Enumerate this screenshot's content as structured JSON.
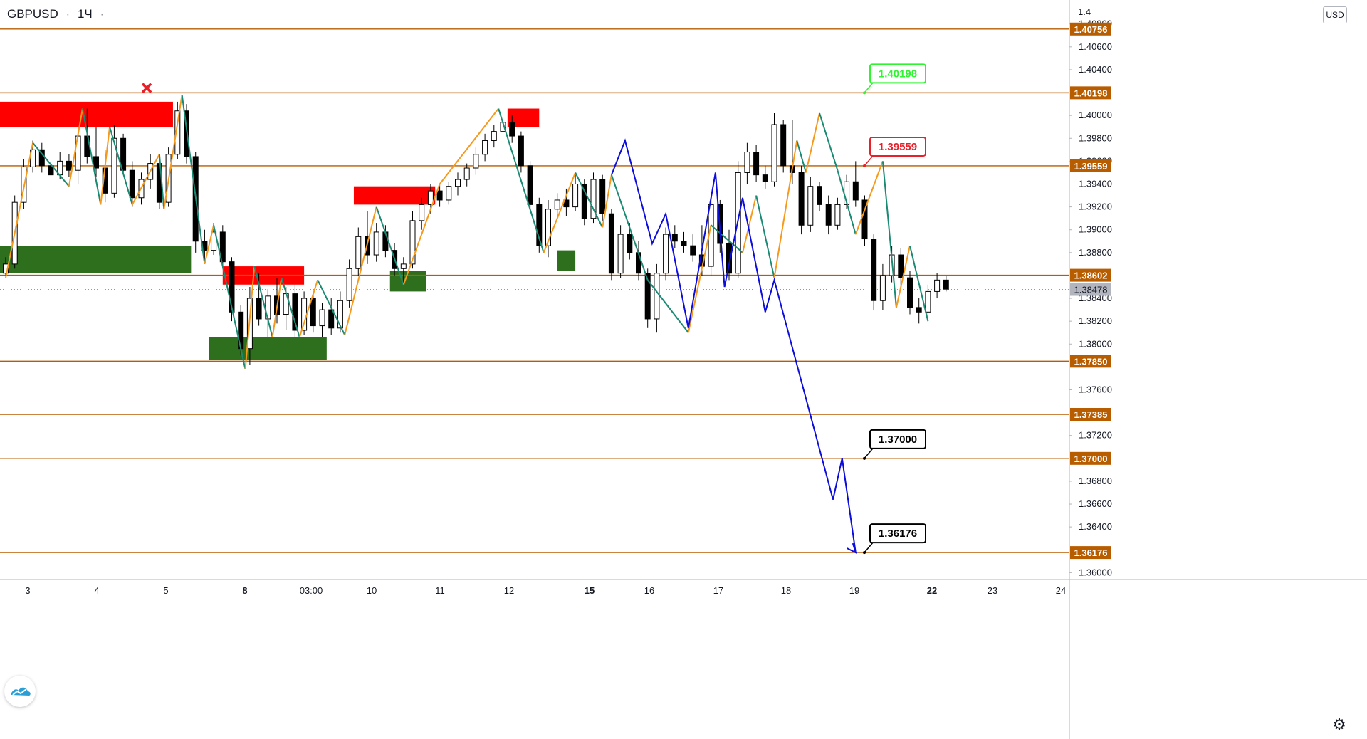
{
  "header": {
    "symbol": "GBPUSD",
    "interval": "1Ч",
    "dot": "·",
    "currency": "USD"
  },
  "colors": {
    "candle_up": "#ffffff",
    "candle_down": "#000000",
    "level_line": "#b85c00",
    "level_label_bg": "#b85c00",
    "current_price_bg": "#b2b5be",
    "zigzag_up": "#f59a1d",
    "zigzag_down": "#1b8a73",
    "forecast": "#0d0ddb",
    "supply_zone": "#ff0000",
    "demand_zone": "#2e6f1d",
    "tp_label": "#2ef52e",
    "sl_label": "#e8202a",
    "target_label": "#000000"
  },
  "chart_data": {
    "type": "candlestick",
    "title": "",
    "symbol": "GBPUSD",
    "timeframe": "1Ч",
    "ylim": [
      1.3594,
      1.4101
    ],
    "x_ticks": [
      {
        "label": "3",
        "bold": false
      },
      {
        "label": "4",
        "bold": false
      },
      {
        "label": "5",
        "bold": false
      },
      {
        "label": "8",
        "bold": true
      },
      {
        "label": "03:00",
        "bold": false
      },
      {
        "label": "10",
        "bold": false
      },
      {
        "label": "11",
        "bold": false
      },
      {
        "label": "12",
        "bold": false
      },
      {
        "label": "15",
        "bold": true
      },
      {
        "label": "16",
        "bold": false
      },
      {
        "label": "17",
        "bold": false
      },
      {
        "label": "18",
        "bold": false
      },
      {
        "label": "19",
        "bold": false
      },
      {
        "label": "22",
        "bold": true
      },
      {
        "label": "23",
        "bold": false
      },
      {
        "label": "24",
        "bold": false
      }
    ],
    "y_ticks": [
      "1.40800",
      "1.40600",
      "1.40400",
      "1.40000",
      "1.39800",
      "1.39600",
      "1.39400",
      "1.39200",
      "1.39000",
      "1.38800",
      "1.38400",
      "1.38200",
      "1.38000",
      "1.37600",
      "1.37200",
      "1.36800",
      "1.36600",
      "1.36400",
      "1.36000"
    ],
    "top_tick_partial": "1.4",
    "levels": [
      1.40756,
      1.40198,
      1.39559,
      1.38602,
      1.3785,
      1.37385,
      1.37,
      1.36176
    ],
    "level_labels": [
      "1.40756",
      "1.40198",
      "1.39559",
      "1.38602",
      "1.37850",
      "1.37385",
      "1.37000",
      "1.36176"
    ],
    "current_price": 1.38478,
    "current_price_label": "1.38478",
    "callouts": [
      {
        "text": "1.40198",
        "price": 1.40198,
        "role": "take-profit"
      },
      {
        "text": "1.39559",
        "price": 1.39559,
        "role": "stop"
      },
      {
        "text": "1.37000",
        "price": 1.37,
        "role": "target"
      },
      {
        "text": "1.36176",
        "price": 1.36176,
        "role": "target"
      }
    ],
    "cancel_marker": {
      "x": 15.6,
      "price": 1.4024
    },
    "candles": [
      {
        "i": 0,
        "o": 1.3862,
        "h": 1.3876,
        "l": 1.3858,
        "c": 1.387
      },
      {
        "i": 1,
        "o": 1.387,
        "h": 1.393,
        "l": 1.3866,
        "c": 1.3924
      },
      {
        "i": 2,
        "o": 1.3924,
        "h": 1.3962,
        "l": 1.3918,
        "c": 1.3955
      },
      {
        "i": 3,
        "o": 1.3955,
        "h": 1.3978,
        "l": 1.395,
        "c": 1.397
      },
      {
        "i": 4,
        "o": 1.397,
        "h": 1.3976,
        "l": 1.395,
        "c": 1.3956
      },
      {
        "i": 5,
        "o": 1.3956,
        "h": 1.3964,
        "l": 1.3942,
        "c": 1.3948
      },
      {
        "i": 6,
        "o": 1.3948,
        "h": 1.3968,
        "l": 1.3944,
        "c": 1.396
      },
      {
        "i": 7,
        "o": 1.396,
        "h": 1.3966,
        "l": 1.3946,
        "c": 1.3952
      },
      {
        "i": 8,
        "o": 1.3952,
        "h": 1.399,
        "l": 1.394,
        "c": 1.3982
      },
      {
        "i": 9,
        "o": 1.3982,
        "h": 1.4006,
        "l": 1.3958,
        "c": 1.3964
      },
      {
        "i": 10,
        "o": 1.3964,
        "h": 1.399,
        "l": 1.3946,
        "c": 1.3954
      },
      {
        "i": 11,
        "o": 1.3954,
        "h": 1.397,
        "l": 1.3924,
        "c": 1.3932
      },
      {
        "i": 12,
        "o": 1.3932,
        "h": 1.3992,
        "l": 1.3928,
        "c": 1.398
      },
      {
        "i": 13,
        "o": 1.398,
        "h": 1.3984,
        "l": 1.3948,
        "c": 1.3952
      },
      {
        "i": 14,
        "o": 1.3952,
        "h": 1.396,
        "l": 1.392,
        "c": 1.3928
      },
      {
        "i": 15,
        "o": 1.3928,
        "h": 1.395,
        "l": 1.3922,
        "c": 1.3944
      },
      {
        "i": 16,
        "o": 1.3944,
        "h": 1.3966,
        "l": 1.3936,
        "c": 1.3958
      },
      {
        "i": 17,
        "o": 1.3958,
        "h": 1.3962,
        "l": 1.3918,
        "c": 1.3924
      },
      {
        "i": 18,
        "o": 1.3924,
        "h": 1.3972,
        "l": 1.392,
        "c": 1.3966
      },
      {
        "i": 19,
        "o": 1.3966,
        "h": 1.4012,
        "l": 1.3962,
        "c": 1.4004
      },
      {
        "i": 20,
        "o": 1.4004,
        "h": 1.401,
        "l": 1.3958,
        "c": 1.3964
      },
      {
        "i": 21,
        "o": 1.3964,
        "h": 1.3968,
        "l": 1.388,
        "c": 1.389
      },
      {
        "i": 22,
        "o": 1.389,
        "h": 1.39,
        "l": 1.387,
        "c": 1.3882
      },
      {
        "i": 23,
        "o": 1.3882,
        "h": 1.3906,
        "l": 1.3878,
        "c": 1.3898
      },
      {
        "i": 24,
        "o": 1.3898,
        "h": 1.3904,
        "l": 1.3866,
        "c": 1.3872
      },
      {
        "i": 25,
        "o": 1.3872,
        "h": 1.3876,
        "l": 1.382,
        "c": 1.3828
      },
      {
        "i": 26,
        "o": 1.3828,
        "h": 1.3834,
        "l": 1.379,
        "c": 1.3796
      },
      {
        "i": 27,
        "o": 1.3796,
        "h": 1.385,
        "l": 1.3782,
        "c": 1.384
      },
      {
        "i": 28,
        "o": 1.384,
        "h": 1.3862,
        "l": 1.3816,
        "c": 1.3822
      },
      {
        "i": 29,
        "o": 1.3822,
        "h": 1.3848,
        "l": 1.3806,
        "c": 1.3842
      },
      {
        "i": 30,
        "o": 1.3842,
        "h": 1.3858,
        "l": 1.3818,
        "c": 1.3826
      },
      {
        "i": 31,
        "o": 1.3826,
        "h": 1.385,
        "l": 1.3812,
        "c": 1.3844
      },
      {
        "i": 32,
        "o": 1.3844,
        "h": 1.3852,
        "l": 1.3806,
        "c": 1.3812
      },
      {
        "i": 33,
        "o": 1.3812,
        "h": 1.3846,
        "l": 1.3808,
        "c": 1.384
      },
      {
        "i": 34,
        "o": 1.384,
        "h": 1.3846,
        "l": 1.381,
        "c": 1.3816
      },
      {
        "i": 35,
        "o": 1.3816,
        "h": 1.3836,
        "l": 1.3806,
        "c": 1.383
      },
      {
        "i": 36,
        "o": 1.383,
        "h": 1.384,
        "l": 1.3808,
        "c": 1.3814
      },
      {
        "i": 37,
        "o": 1.3814,
        "h": 1.3846,
        "l": 1.381,
        "c": 1.3838
      },
      {
        "i": 38,
        "o": 1.3838,
        "h": 1.3874,
        "l": 1.3832,
        "c": 1.3866
      },
      {
        "i": 39,
        "o": 1.3866,
        "h": 1.3902,
        "l": 1.386,
        "c": 1.3894
      },
      {
        "i": 40,
        "o": 1.3894,
        "h": 1.3916,
        "l": 1.387,
        "c": 1.3878
      },
      {
        "i": 41,
        "o": 1.3878,
        "h": 1.3906,
        "l": 1.3872,
        "c": 1.3898
      },
      {
        "i": 42,
        "o": 1.3898,
        "h": 1.3904,
        "l": 1.3876,
        "c": 1.3882
      },
      {
        "i": 43,
        "o": 1.3882,
        "h": 1.3888,
        "l": 1.386,
        "c": 1.3866
      },
      {
        "i": 44,
        "o": 1.3866,
        "h": 1.3876,
        "l": 1.3852,
        "c": 1.387
      },
      {
        "i": 45,
        "o": 1.387,
        "h": 1.3916,
        "l": 1.3866,
        "c": 1.3908
      },
      {
        "i": 46,
        "o": 1.3908,
        "h": 1.3928,
        "l": 1.39,
        "c": 1.3922
      },
      {
        "i": 47,
        "o": 1.3922,
        "h": 1.394,
        "l": 1.3914,
        "c": 1.3934
      },
      {
        "i": 48,
        "o": 1.3934,
        "h": 1.394,
        "l": 1.392,
        "c": 1.3926
      },
      {
        "i": 49,
        "o": 1.3926,
        "h": 1.3942,
        "l": 1.3922,
        "c": 1.3938
      },
      {
        "i": 50,
        "o": 1.3938,
        "h": 1.395,
        "l": 1.393,
        "c": 1.3944
      },
      {
        "i": 51,
        "o": 1.3944,
        "h": 1.3958,
        "l": 1.3938,
        "c": 1.3954
      },
      {
        "i": 52,
        "o": 1.3954,
        "h": 1.3972,
        "l": 1.3948,
        "c": 1.3966
      },
      {
        "i": 53,
        "o": 1.3966,
        "h": 1.3984,
        "l": 1.396,
        "c": 1.3978
      },
      {
        "i": 54,
        "o": 1.3978,
        "h": 1.3992,
        "l": 1.3972,
        "c": 1.3986
      },
      {
        "i": 55,
        "o": 1.3986,
        "h": 1.4004,
        "l": 1.3982,
        "c": 1.3994
      },
      {
        "i": 56,
        "o": 1.3994,
        "h": 1.4,
        "l": 1.3976,
        "c": 1.3982
      },
      {
        "i": 57,
        "o": 1.3982,
        "h": 1.3986,
        "l": 1.395,
        "c": 1.3956
      },
      {
        "i": 58,
        "o": 1.3956,
        "h": 1.396,
        "l": 1.3916,
        "c": 1.3922
      },
      {
        "i": 59,
        "o": 1.3922,
        "h": 1.3928,
        "l": 1.388,
        "c": 1.3886
      },
      {
        "i": 60,
        "o": 1.3886,
        "h": 1.3926,
        "l": 1.3876,
        "c": 1.3918
      },
      {
        "i": 61,
        "o": 1.3918,
        "h": 1.3932,
        "l": 1.3912,
        "c": 1.3926
      },
      {
        "i": 62,
        "o": 1.3926,
        "h": 1.3936,
        "l": 1.3912,
        "c": 1.392
      },
      {
        "i": 63,
        "o": 1.392,
        "h": 1.3948,
        "l": 1.3916,
        "c": 1.394
      },
      {
        "i": 64,
        "o": 1.394,
        "h": 1.3944,
        "l": 1.3904,
        "c": 1.391
      },
      {
        "i": 65,
        "o": 1.391,
        "h": 1.395,
        "l": 1.3906,
        "c": 1.3944
      },
      {
        "i": 66,
        "o": 1.3944,
        "h": 1.3948,
        "l": 1.3908,
        "c": 1.3914
      },
      {
        "i": 67,
        "o": 1.3914,
        "h": 1.3918,
        "l": 1.3856,
        "c": 1.3862
      },
      {
        "i": 68,
        "o": 1.3862,
        "h": 1.3904,
        "l": 1.3858,
        "c": 1.3896
      },
      {
        "i": 69,
        "o": 1.3896,
        "h": 1.3906,
        "l": 1.3874,
        "c": 1.388
      },
      {
        "i": 70,
        "o": 1.388,
        "h": 1.389,
        "l": 1.3856,
        "c": 1.3862
      },
      {
        "i": 71,
        "o": 1.3862,
        "h": 1.3866,
        "l": 1.3814,
        "c": 1.3822
      },
      {
        "i": 72,
        "o": 1.3822,
        "h": 1.387,
        "l": 1.381,
        "c": 1.3862
      },
      {
        "i": 73,
        "o": 1.3862,
        "h": 1.3902,
        "l": 1.3856,
        "c": 1.3896
      },
      {
        "i": 74,
        "o": 1.3896,
        "h": 1.3904,
        "l": 1.3884,
        "c": 1.389
      },
      {
        "i": 75,
        "o": 1.389,
        "h": 1.3898,
        "l": 1.388,
        "c": 1.3886
      },
      {
        "i": 76,
        "o": 1.3886,
        "h": 1.3896,
        "l": 1.3872,
        "c": 1.3878
      },
      {
        "i": 77,
        "o": 1.3878,
        "h": 1.3904,
        "l": 1.386,
        "c": 1.3868
      },
      {
        "i": 78,
        "o": 1.3868,
        "h": 1.393,
        "l": 1.386,
        "c": 1.3922
      },
      {
        "i": 79,
        "o": 1.3922,
        "h": 1.3926,
        "l": 1.388,
        "c": 1.3888
      },
      {
        "i": 80,
        "o": 1.3888,
        "h": 1.39,
        "l": 1.3856,
        "c": 1.3862
      },
      {
        "i": 81,
        "o": 1.3862,
        "h": 1.396,
        "l": 1.3858,
        "c": 1.395
      },
      {
        "i": 82,
        "o": 1.395,
        "h": 1.3976,
        "l": 1.394,
        "c": 1.3968
      },
      {
        "i": 83,
        "o": 1.3968,
        "h": 1.3974,
        "l": 1.3942,
        "c": 1.3948
      },
      {
        "i": 84,
        "o": 1.3948,
        "h": 1.3956,
        "l": 1.3936,
        "c": 1.3942
      },
      {
        "i": 85,
        "o": 1.3942,
        "h": 1.4002,
        "l": 1.3938,
        "c": 1.3992
      },
      {
        "i": 86,
        "o": 1.3992,
        "h": 1.3996,
        "l": 1.395,
        "c": 1.3956
      },
      {
        "i": 87,
        "o": 1.3956,
        "h": 1.3996,
        "l": 1.394,
        "c": 1.395
      },
      {
        "i": 88,
        "o": 1.395,
        "h": 1.3956,
        "l": 1.3896,
        "c": 1.3904
      },
      {
        "i": 89,
        "o": 1.3904,
        "h": 1.3946,
        "l": 1.3898,
        "c": 1.3938
      },
      {
        "i": 90,
        "o": 1.3938,
        "h": 1.3942,
        "l": 1.3916,
        "c": 1.3922
      },
      {
        "i": 91,
        "o": 1.3922,
        "h": 1.393,
        "l": 1.3896,
        "c": 1.3904
      },
      {
        "i": 92,
        "o": 1.3904,
        "h": 1.3928,
        "l": 1.39,
        "c": 1.3922
      },
      {
        "i": 93,
        "o": 1.3922,
        "h": 1.3948,
        "l": 1.3918,
        "c": 1.3942
      },
      {
        "i": 94,
        "o": 1.3942,
        "h": 1.396,
        "l": 1.392,
        "c": 1.3926
      },
      {
        "i": 95,
        "o": 1.3926,
        "h": 1.393,
        "l": 1.3886,
        "c": 1.3892
      },
      {
        "i": 96,
        "o": 1.3892,
        "h": 1.3896,
        "l": 1.383,
        "c": 1.3838
      },
      {
        "i": 97,
        "o": 1.3838,
        "h": 1.387,
        "l": 1.383,
        "c": 1.386
      },
      {
        "i": 98,
        "o": 1.386,
        "h": 1.3886,
        "l": 1.3854,
        "c": 1.3878
      },
      {
        "i": 99,
        "o": 1.3878,
        "h": 1.3884,
        "l": 1.3852,
        "c": 1.3858
      },
      {
        "i": 100,
        "o": 1.3858,
        "h": 1.3864,
        "l": 1.3826,
        "c": 1.3832
      },
      {
        "i": 101,
        "o": 1.3832,
        "h": 1.384,
        "l": 1.3818,
        "c": 1.3828
      },
      {
        "i": 102,
        "o": 1.3828,
        "h": 1.3852,
        "l": 1.3824,
        "c": 1.3846
      },
      {
        "i": 103,
        "o": 1.3846,
        "h": 1.3862,
        "l": 1.384,
        "c": 1.3856
      },
      {
        "i": 104,
        "o": 1.3856,
        "h": 1.386,
        "l": 1.3846,
        "c": 1.3848
      }
    ],
    "zigzag": [
      {
        "x": 0,
        "p": 1.3858
      },
      {
        "x": 3,
        "p": 1.3976
      },
      {
        "x": 7,
        "p": 1.3938
      },
      {
        "x": 8.5,
        "p": 1.4006
      },
      {
        "x": 10.5,
        "p": 1.3922
      },
      {
        "x": 11.5,
        "p": 1.399
      },
      {
        "x": 14,
        "p": 1.3922
      },
      {
        "x": 17,
        "p": 1.3966
      },
      {
        "x": 17.5,
        "p": 1.3918
      },
      {
        "x": 19.5,
        "p": 1.4018
      },
      {
        "x": 22,
        "p": 1.387
      },
      {
        "x": 23,
        "p": 1.3904
      },
      {
        "x": 26.5,
        "p": 1.3778
      },
      {
        "x": 27.5,
        "p": 1.3868
      },
      {
        "x": 29.5,
        "p": 1.3806
      },
      {
        "x": 30.5,
        "p": 1.3858
      },
      {
        "x": 32.5,
        "p": 1.3806
      },
      {
        "x": 34.5,
        "p": 1.3856
      },
      {
        "x": 37.5,
        "p": 1.3808
      },
      {
        "x": 41,
        "p": 1.392
      },
      {
        "x": 44,
        "p": 1.3852
      },
      {
        "x": 48,
        "p": 1.394
      },
      {
        "x": 54.5,
        "p": 1.4006
      },
      {
        "x": 59.5,
        "p": 1.388
      },
      {
        "x": 63,
        "p": 1.395
      },
      {
        "x": 66,
        "p": 1.3902
      },
      {
        "x": 67,
        "p": 1.3948
      },
      {
        "x": 71,
        "p": 1.3856
      },
      {
        "x": 75.5,
        "p": 1.381
      },
      {
        "x": 78,
        "p": 1.3904
      },
      {
        "x": 81.5,
        "p": 1.388
      },
      {
        "x": 83,
        "p": 1.393
      },
      {
        "x": 85,
        "p": 1.3858
      },
      {
        "x": 87.5,
        "p": 1.3978
      },
      {
        "x": 88.5,
        "p": 1.395
      },
      {
        "x": 90,
        "p": 1.4002
      },
      {
        "x": 92,
        "p": 1.3952
      },
      {
        "x": 94,
        "p": 1.3896
      },
      {
        "x": 97,
        "p": 1.396
      },
      {
        "x": 98.5,
        "p": 1.3832
      },
      {
        "x": 100,
        "p": 1.3886
      },
      {
        "x": 102,
        "p": 1.382
      }
    ],
    "forecast_path": [
      {
        "x": 67.0,
        "p": 1.3948
      },
      {
        "x": 68.5,
        "p": 1.3978
      },
      {
        "x": 71.5,
        "p": 1.3888
      },
      {
        "x": 73.0,
        "p": 1.3914
      },
      {
        "x": 75.5,
        "p": 1.3814
      },
      {
        "x": 78.5,
        "p": 1.395
      },
      {
        "x": 79.5,
        "p": 1.385
      },
      {
        "x": 81.5,
        "p": 1.3928
      },
      {
        "x": 84.0,
        "p": 1.3828
      },
      {
        "x": 85.0,
        "p": 1.3856
      },
      {
        "x": 91.5,
        "p": 1.3664
      },
      {
        "x": 92.5,
        "p": 1.37
      },
      {
        "x": 94.0,
        "p": 1.36176
      }
    ],
    "zones": [
      {
        "type": "supply",
        "x0": -1,
        "x1": 18.5,
        "p0": 1.399,
        "p1": 1.4012
      },
      {
        "type": "demand",
        "x0": -1,
        "x1": 20.5,
        "p0": 1.3862,
        "p1": 1.3886
      },
      {
        "type": "supply",
        "x0": 24,
        "x1": 33,
        "p0": 1.3852,
        "p1": 1.3868
      },
      {
        "type": "demand",
        "x0": 22.5,
        "x1": 35.5,
        "p0": 1.3786,
        "p1": 1.3806
      },
      {
        "type": "supply",
        "x0": 38.5,
        "x1": 47.5,
        "p0": 1.3922,
        "p1": 1.3938
      },
      {
        "type": "demand",
        "x0": 42.5,
        "x1": 46.5,
        "p0": 1.3846,
        "p1": 1.3864
      },
      {
        "type": "supply",
        "x0": 55.5,
        "x1": 59,
        "p0": 1.399,
        "p1": 1.4006
      },
      {
        "type": "demand",
        "x0": 61,
        "x1": 63,
        "p0": 1.3864,
        "p1": 1.3882
      }
    ]
  }
}
